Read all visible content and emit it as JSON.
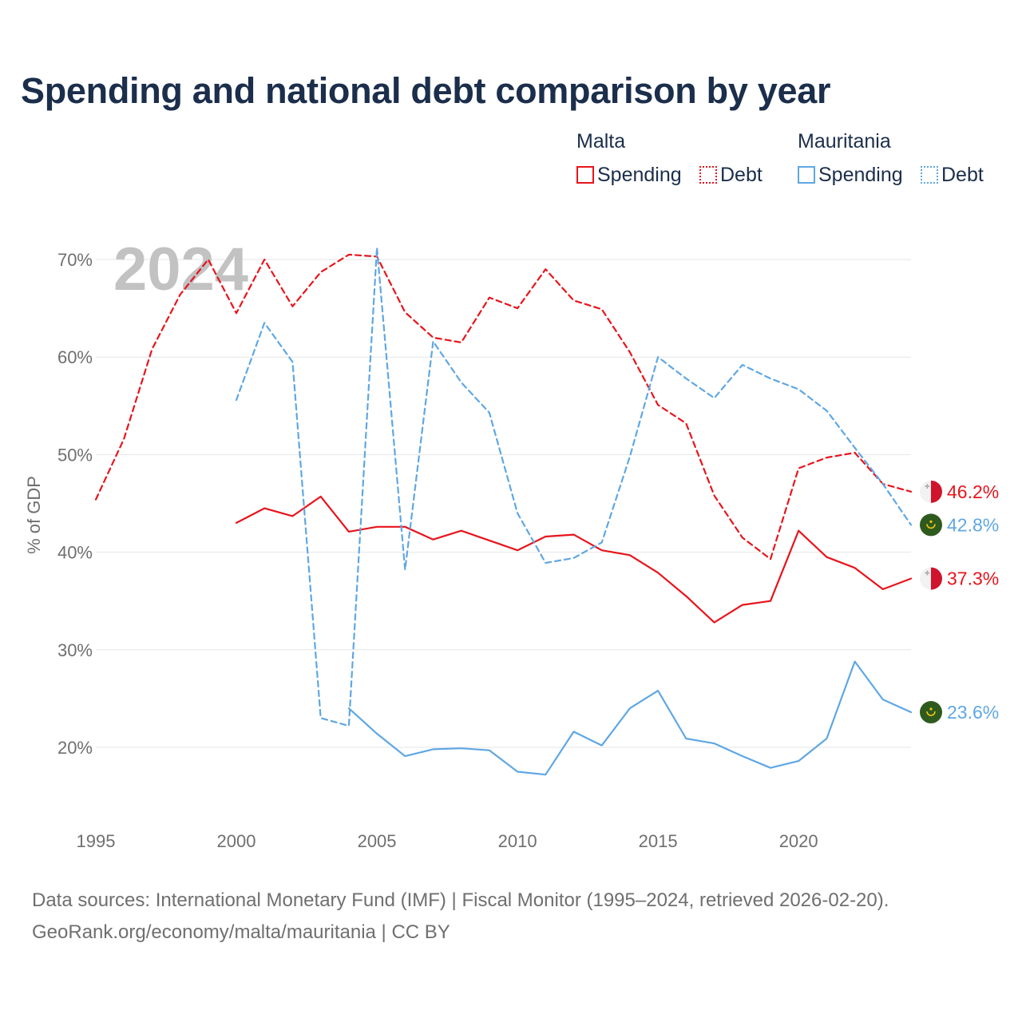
{
  "title": "Spending and national debt comparison by year",
  "legend": {
    "groups": [
      {
        "country": "Malta",
        "items": [
          "Spending",
          "Debt"
        ]
      },
      {
        "country": "Mauritania",
        "items": [
          "Spending",
          "Debt"
        ]
      }
    ]
  },
  "colors": {
    "malta": "#e8141c",
    "mauritania": "#5fa7e4",
    "grid": "#e6e6e6",
    "axis_text": "#6f6f6f",
    "watermark": "#c2c2c2"
  },
  "chart_data": {
    "type": "line",
    "year_label": "2024",
    "ylabel": "% of GDP",
    "xlim": [
      1995,
      2024
    ],
    "ylim": [
      13,
      75
    ],
    "x_ticks": [
      1995,
      2000,
      2005,
      2010,
      2015,
      2020
    ],
    "y_ticks": [
      20,
      30,
      40,
      50,
      60,
      70
    ],
    "y_tick_labels": [
      "20%",
      "30%",
      "40%",
      "50%",
      "60%",
      "70%"
    ],
    "series": [
      {
        "name": "Malta Debt",
        "country": "Malta",
        "metric": "Debt",
        "style": "dashed",
        "color": "#e8141c",
        "x": [
          1995,
          1996,
          1997,
          1998,
          1999,
          2000,
          2001,
          2002,
          2003,
          2004,
          2005,
          2006,
          2007,
          2008,
          2009,
          2010,
          2011,
          2012,
          2013,
          2014,
          2015,
          2016,
          2017,
          2018,
          2019,
          2020,
          2021,
          2022,
          2023,
          2024
        ],
        "values": [
          45.4,
          51.6,
          60.8,
          66.4,
          70.0,
          64.5,
          70.0,
          65.2,
          68.7,
          70.5,
          70.3,
          64.6,
          62.0,
          61.5,
          66.1,
          65.0,
          69.0,
          65.8,
          64.9,
          60.5,
          55.1,
          53.2,
          45.8,
          41.5,
          39.3,
          48.6,
          49.7,
          50.2,
          47.0,
          46.2
        ],
        "end_label": "46.2%"
      },
      {
        "name": "Malta Spending",
        "country": "Malta",
        "metric": "Spending",
        "style": "solid",
        "color": "#e8141c",
        "x": [
          2000,
          2001,
          2002,
          2003,
          2004,
          2005,
          2006,
          2007,
          2008,
          2009,
          2010,
          2011,
          2012,
          2013,
          2014,
          2015,
          2016,
          2017,
          2018,
          2019,
          2020,
          2021,
          2022,
          2023,
          2024
        ],
        "values": [
          43.0,
          44.5,
          43.7,
          45.7,
          42.1,
          42.6,
          42.6,
          41.3,
          42.2,
          41.2,
          40.2,
          41.6,
          41.8,
          40.2,
          39.7,
          37.9,
          35.5,
          32.8,
          34.6,
          35.0,
          42.2,
          39.5,
          38.4,
          36.2,
          37.3
        ],
        "end_label": "37.3%"
      },
      {
        "name": "Mauritania Debt",
        "country": "Mauritania",
        "metric": "Debt",
        "style": "dashed",
        "color": "#5fa7e4",
        "x": [
          2000,
          2001,
          2002,
          2003,
          2004,
          2005,
          2006,
          2007,
          2008,
          2009,
          2010,
          2011,
          2012,
          2013,
          2014,
          2015,
          2016,
          2017,
          2018,
          2019,
          2020,
          2021,
          2022,
          2023,
          2024
        ],
        "values": [
          55.6,
          63.5,
          59.5,
          23.0,
          22.2,
          71.2,
          38.2,
          61.6,
          57.4,
          54.3,
          44.0,
          38.9,
          39.4,
          41.0,
          49.8,
          60.0,
          57.8,
          55.8,
          59.2,
          57.8,
          56.7,
          54.5,
          50.7,
          47.0,
          42.8
        ],
        "end_label": "42.8%"
      },
      {
        "name": "Mauritania Spending",
        "country": "Mauritania",
        "metric": "Spending",
        "style": "solid",
        "color": "#5fa7e4",
        "x": [
          2004,
          2005,
          2006,
          2007,
          2008,
          2009,
          2010,
          2011,
          2012,
          2013,
          2014,
          2015,
          2016,
          2017,
          2018,
          2019,
          2020,
          2021,
          2022,
          2023,
          2024
        ],
        "values": [
          24.0,
          21.4,
          19.1,
          19.8,
          19.9,
          19.7,
          17.5,
          17.2,
          21.6,
          20.2,
          24.0,
          25.8,
          20.9,
          20.4,
          19.1,
          17.9,
          18.6,
          20.9,
          28.8,
          24.9,
          23.6
        ],
        "end_label": "23.6%"
      }
    ]
  },
  "source": {
    "line1": "Data sources: International Monetary Fund (IMF) | Fiscal Monitor (1995–2024, retrieved 2026-02-20).",
    "line2": "GeoRank.org/economy/malta/mauritania | CC BY"
  }
}
